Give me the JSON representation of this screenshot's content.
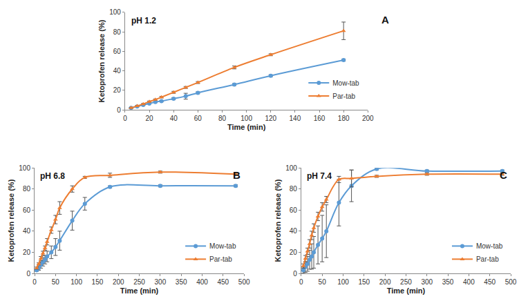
{
  "chart_data": [
    {
      "type": "line",
      "annotations": [
        "pH 1.2",
        "A"
      ],
      "x_label": "Time (min)",
      "y_label": "Ketoprofen release (%)",
      "x": [
        5,
        10,
        15,
        20,
        25,
        30,
        40,
        50,
        60,
        90,
        120,
        180
      ],
      "xlim": [
        0,
        200
      ],
      "xticks": [
        0,
        20,
        40,
        60,
        80,
        100,
        120,
        140,
        160,
        180,
        200
      ],
      "ylim": [
        0,
        100
      ],
      "yticks": [
        0,
        20,
        40,
        60,
        80,
        100
      ],
      "grid": false,
      "legend": "lower right",
      "line_style": "smooth",
      "series": [
        {
          "name": "Mow-tab",
          "color": "#5b9bd5",
          "marker": "circle",
          "values": [
            2,
            3.5,
            5,
            6.5,
            8,
            9,
            11.5,
            14,
            17.5,
            26,
            35,
            51
          ],
          "errors": [
            0.3,
            0.4,
            0.5,
            0.5,
            0.6,
            0.7,
            1,
            3,
            1,
            1,
            1,
            1
          ]
        },
        {
          "name": "Par-tab",
          "color": "#ed7d31",
          "marker": "triangle-up",
          "values": [
            2,
            4,
            6,
            8.5,
            10.5,
            13,
            18,
            23,
            28,
            43.5,
            56.5,
            81
          ],
          "errors": [
            0.3,
            0.4,
            0.5,
            0.6,
            0.7,
            0.8,
            1,
            1,
            1,
            1.5,
            1,
            9
          ]
        }
      ]
    },
    {
      "type": "line",
      "annotations": [
        "pH 6.8",
        "B"
      ],
      "x_label": "Time (min)",
      "y_label": "Ketoprofen release (%)",
      "x": [
        5,
        10,
        15,
        20,
        25,
        30,
        40,
        50,
        60,
        90,
        120,
        180,
        300,
        480
      ],
      "xlim": [
        0,
        500
      ],
      "xticks": [
        0,
        50,
        100,
        150,
        200,
        250,
        300,
        350,
        400,
        450,
        500
      ],
      "ylim": [
        0,
        100
      ],
      "yticks": [
        0,
        20,
        40,
        60,
        80,
        100
      ],
      "grid": false,
      "legend": "lower right",
      "line_style": "smooth",
      "series": [
        {
          "name": "Mow-tab",
          "color": "#5b9bd5",
          "marker": "circle",
          "values": [
            3,
            5,
            8,
            11,
            13,
            16,
            20,
            25,
            31,
            50,
            66,
            82,
            83,
            83
          ],
          "errors": [
            1,
            2,
            3,
            4,
            4,
            5,
            6,
            8,
            9,
            9,
            6,
            1,
            1,
            1
          ]
        },
        {
          "name": "Par-tab",
          "color": "#ed7d31",
          "marker": "triangle-up",
          "values": [
            5,
            9,
            14,
            19,
            24,
            30,
            41,
            51,
            62,
            80,
            91,
            93,
            96,
            94
          ],
          "errors": [
            1,
            1,
            2,
            2,
            2,
            3,
            3,
            4,
            6,
            3,
            1,
            2,
            1,
            1
          ]
        }
      ]
    },
    {
      "type": "line",
      "annotations": [
        "pH 7.4",
        "C"
      ],
      "x_label": "Time (min)",
      "y_label": "Ketoprofen release (%)",
      "x": [
        5,
        10,
        15,
        20,
        25,
        30,
        40,
        50,
        60,
        90,
        120,
        180,
        300,
        480
      ],
      "xlim": [
        0,
        500
      ],
      "xticks": [
        0,
        50,
        100,
        150,
        200,
        250,
        300,
        350,
        400,
        450,
        500
      ],
      "ylim": [
        0,
        100
      ],
      "yticks": [
        0,
        20,
        40,
        60,
        80,
        100
      ],
      "grid": false,
      "legend": "lower right",
      "line_style": "smooth",
      "series": [
        {
          "name": "Mow-tab",
          "color": "#5b9bd5",
          "marker": "circle",
          "values": [
            3,
            6,
            9,
            13,
            16,
            20,
            27,
            33,
            40,
            67,
            83,
            99,
            97,
            97
          ],
          "errors": [
            3,
            5,
            7,
            9,
            12,
            15,
            18,
            22,
            25,
            22,
            15,
            1,
            1,
            1
          ]
        },
        {
          "name": "Par-tab",
          "color": "#ed7d31",
          "marker": "triangle-up",
          "values": [
            7,
            14,
            21,
            28,
            36,
            43,
            54,
            63,
            70,
            89,
            90,
            92,
            94,
            94
          ],
          "errors": [
            2,
            3,
            3,
            4,
            4,
            4,
            4,
            4,
            3,
            3,
            8,
            1,
            1,
            1
          ]
        }
      ]
    }
  ]
}
